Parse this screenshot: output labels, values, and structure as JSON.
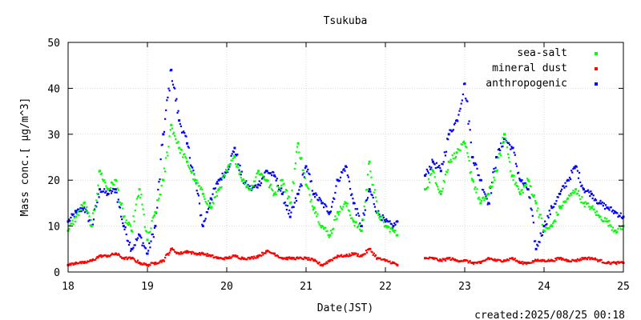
{
  "chart_data": {
    "type": "scatter",
    "title": "Tsukuba",
    "xlabel": "Date(JST)",
    "ylabel": "Mass conc.[ μg/m^3]",
    "x_unit": "day of month (2025-08)",
    "xlim": [
      18,
      25
    ],
    "ylim": [
      0,
      50
    ],
    "xticks": [
      18,
      19,
      20,
      21,
      22,
      23,
      24,
      25
    ],
    "yticks": [
      0,
      10,
      20,
      30,
      40,
      50
    ],
    "grid": true,
    "legend_position": "top-right",
    "data_gaps": [
      [
        22.15,
        22.5
      ]
    ],
    "series": [
      {
        "name": "sea-salt",
        "color": "#00ff00",
        "x": [
          18.0,
          18.1,
          18.2,
          18.3,
          18.4,
          18.5,
          18.6,
          18.7,
          18.8,
          18.9,
          19.0,
          19.1,
          19.2,
          19.3,
          19.4,
          19.5,
          19.6,
          19.7,
          19.8,
          19.9,
          20.0,
          20.1,
          20.2,
          20.3,
          20.4,
          20.5,
          20.6,
          20.7,
          20.8,
          20.9,
          21.0,
          21.1,
          21.2,
          21.3,
          21.4,
          21.5,
          21.6,
          21.7,
          21.8,
          21.9,
          22.0,
          22.1,
          22.15,
          22.5,
          22.6,
          22.7,
          22.8,
          22.9,
          23.0,
          23.1,
          23.2,
          23.3,
          23.4,
          23.5,
          23.6,
          23.7,
          23.8,
          23.9,
          24.0,
          24.1,
          24.2,
          24.3,
          24.4,
          24.5,
          24.6,
          24.7,
          24.8,
          24.9,
          25.0
        ],
        "y": [
          9,
          12,
          15,
          10,
          22,
          18,
          20,
          12,
          9,
          18,
          7,
          13,
          20,
          32,
          27,
          24,
          20,
          17,
          14,
          18,
          22,
          25,
          20,
          18,
          22,
          20,
          17,
          20,
          15,
          28,
          19,
          14,
          10,
          8,
          13,
          15,
          11,
          9,
          24,
          13,
          10,
          9,
          8,
          18,
          22,
          17,
          24,
          26,
          28,
          20,
          15,
          17,
          22,
          30,
          21,
          17,
          20,
          15,
          9,
          10,
          14,
          16,
          18,
          15,
          14,
          12,
          11,
          9,
          10
        ]
      },
      {
        "name": "mineral dust",
        "color": "#ff0000",
        "x": [
          18.0,
          18.1,
          18.2,
          18.3,
          18.4,
          18.5,
          18.6,
          18.7,
          18.8,
          18.9,
          19.0,
          19.1,
          19.2,
          19.3,
          19.4,
          19.5,
          19.6,
          19.7,
          19.8,
          19.9,
          20.0,
          20.1,
          20.2,
          20.3,
          20.4,
          20.5,
          20.6,
          20.7,
          20.8,
          20.9,
          21.0,
          21.1,
          21.2,
          21.3,
          21.4,
          21.5,
          21.6,
          21.7,
          21.8,
          21.9,
          22.0,
          22.1,
          22.15,
          22.5,
          22.6,
          22.7,
          22.8,
          22.9,
          23.0,
          23.1,
          23.2,
          23.3,
          23.4,
          23.5,
          23.6,
          23.7,
          23.8,
          23.9,
          24.0,
          24.1,
          24.2,
          24.3,
          24.4,
          24.5,
          24.6,
          24.7,
          24.8,
          24.9,
          25.0
        ],
        "y": [
          1.5,
          2,
          2,
          2.5,
          3.5,
          3.5,
          4,
          3,
          3,
          2,
          1.5,
          2,
          2.5,
          5,
          4,
          4.5,
          4,
          4,
          3.5,
          3,
          3,
          3.5,
          3,
          3,
          3.5,
          4.5,
          4,
          3,
          3,
          3,
          3,
          2.5,
          1.5,
          2.5,
          3.5,
          3.5,
          4,
          3.5,
          5,
          3,
          2.5,
          2,
          1.5,
          3,
          3,
          2.5,
          3,
          2.5,
          2.5,
          2,
          2,
          3,
          2.5,
          2.5,
          3,
          2,
          2,
          2.5,
          2.5,
          2.5,
          3,
          2.5,
          2.5,
          3,
          3,
          2.5,
          2,
          2,
          2
        ]
      },
      {
        "name": "anthropogenic",
        "color": "#0000ff",
        "x": [
          18.0,
          18.1,
          18.2,
          18.3,
          18.4,
          18.5,
          18.6,
          18.7,
          18.8,
          18.9,
          19.0,
          19.1,
          19.2,
          19.3,
          19.4,
          19.5,
          19.6,
          19.7,
          19.8,
          19.9,
          20.0,
          20.1,
          20.2,
          20.3,
          20.4,
          20.5,
          20.6,
          20.7,
          20.8,
          20.9,
          21.0,
          21.1,
          21.2,
          21.3,
          21.4,
          21.5,
          21.6,
          21.7,
          21.8,
          21.9,
          22.0,
          22.1,
          22.15,
          22.5,
          22.6,
          22.7,
          22.8,
          22.9,
          23.0,
          23.1,
          23.2,
          23.3,
          23.4,
          23.5,
          23.6,
          23.7,
          23.8,
          23.9,
          24.0,
          24.1,
          24.2,
          24.3,
          24.4,
          24.5,
          24.6,
          24.7,
          24.8,
          24.9,
          25.0
        ],
        "y": [
          11,
          13,
          14,
          10,
          18,
          17,
          18,
          10,
          5,
          8,
          4,
          10,
          30,
          44,
          33,
          28,
          20,
          10,
          16,
          20,
          22,
          27,
          20,
          18,
          19,
          22,
          21,
          17,
          12,
          17,
          23,
          17,
          15,
          13,
          20,
          23,
          15,
          10,
          18,
          13,
          11,
          10,
          11,
          21,
          24,
          22,
          30,
          33,
          41,
          25,
          20,
          15,
          25,
          29,
          27,
          20,
          18,
          5,
          10,
          14,
          17,
          20,
          23,
          18,
          17,
          15,
          14,
          13,
          12
        ]
      }
    ]
  },
  "footer": {
    "created": "created:2025/08/25 00:18"
  }
}
